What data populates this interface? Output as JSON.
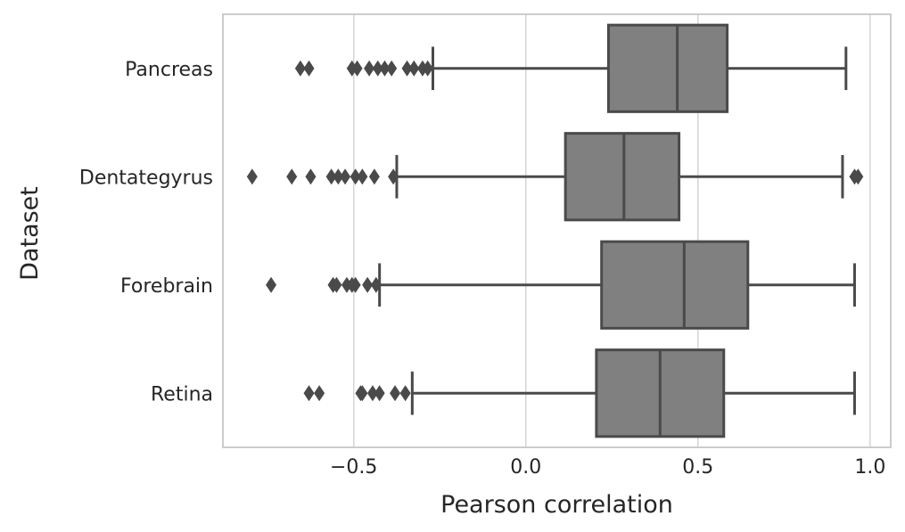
{
  "chart_data": {
    "type": "boxplot",
    "orientation": "horizontal",
    "xlabel": "Pearson correlation",
    "ylabel": "Dataset",
    "xlim": [
      -0.88,
      1.06
    ],
    "xticks": [
      -0.5,
      0.0,
      0.5,
      1.0
    ],
    "xtick_labels": [
      "−0.5",
      "0.0",
      "0.5",
      "1.0"
    ],
    "grid": "vertical",
    "box_color": "#808080",
    "line_color": "#4a4a4a",
    "grid_color": "#d4d4d4",
    "categories": [
      "Pancreas",
      "Dentategyrus",
      "Forebrain",
      "Retina"
    ],
    "boxes": [
      {
        "category": "Pancreas",
        "whisker_low": -0.27,
        "q1": 0.24,
        "median": 0.44,
        "q3": 0.585,
        "whisker_high": 0.93,
        "outliers": [
          -0.655,
          -0.63,
          -0.505,
          -0.49,
          -0.455,
          -0.43,
          -0.41,
          -0.39,
          -0.345,
          -0.325,
          -0.3,
          -0.285
        ]
      },
      {
        "category": "Dentategyrus",
        "whisker_low": -0.375,
        "q1": 0.115,
        "median": 0.285,
        "q3": 0.445,
        "whisker_high": 0.92,
        "outliers": [
          -0.795,
          -0.68,
          -0.625,
          -0.565,
          -0.545,
          -0.525,
          -0.495,
          -0.475,
          -0.44,
          -0.385,
          0.955,
          0.965
        ]
      },
      {
        "category": "Forebrain",
        "whisker_low": -0.425,
        "q1": 0.22,
        "median": 0.46,
        "q3": 0.645,
        "whisker_high": 0.955,
        "outliers": [
          -0.74,
          -0.56,
          -0.55,
          -0.52,
          -0.505,
          -0.495,
          -0.46,
          -0.435
        ]
      },
      {
        "category": "Retina",
        "whisker_low": -0.33,
        "q1": 0.205,
        "median": 0.39,
        "q3": 0.575,
        "whisker_high": 0.955,
        "outliers": [
          -0.63,
          -0.6,
          -0.48,
          -0.475,
          -0.445,
          -0.425,
          -0.38,
          -0.35
        ]
      }
    ]
  }
}
